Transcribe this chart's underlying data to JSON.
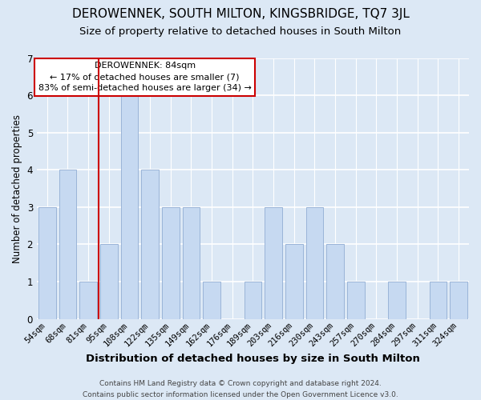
{
  "title": "DEROWENNEK, SOUTH MILTON, KINGSBRIDGE, TQ7 3JL",
  "subtitle": "Size of property relative to detached houses in South Milton",
  "xlabel": "Distribution of detached houses by size in South Milton",
  "ylabel": "Number of detached properties",
  "categories": [
    "54sqm",
    "68sqm",
    "81sqm",
    "95sqm",
    "108sqm",
    "122sqm",
    "135sqm",
    "149sqm",
    "162sqm",
    "176sqm",
    "189sqm",
    "203sqm",
    "216sqm",
    "230sqm",
    "243sqm",
    "257sqm",
    "270sqm",
    "284sqm",
    "297sqm",
    "311sqm",
    "324sqm"
  ],
  "values": [
    3,
    4,
    1,
    2,
    6,
    4,
    3,
    3,
    1,
    0,
    1,
    3,
    2,
    3,
    2,
    1,
    0,
    1,
    0,
    1,
    1
  ],
  "bar_color": "#c6d9f1",
  "bar_edge_color": "#9ab4d8",
  "marker_index": 2,
  "marker_color": "#cc0000",
  "ylim": [
    0,
    7
  ],
  "yticks": [
    0,
    1,
    2,
    3,
    4,
    5,
    6,
    7
  ],
  "annotation_title": "DEROWENNEK: 84sqm",
  "annotation_line1": "← 17% of detached houses are smaller (7)",
  "annotation_line2": "83% of semi-detached houses are larger (34) →",
  "annotation_box_color": "#ffffff",
  "annotation_box_edge": "#cc0000",
  "footer_line1": "Contains HM Land Registry data © Crown copyright and database right 2024.",
  "footer_line2": "Contains public sector information licensed under the Open Government Licence v3.0.",
  "bg_color": "#dce8f5",
  "plot_bg_color": "#dce8f5",
  "grid_color": "#b8cfe8",
  "title_fontsize": 11,
  "subtitle_fontsize": 9.5,
  "xlabel_fontsize": 9.5,
  "ylabel_fontsize": 8.5,
  "tick_fontsize": 7.5,
  "ann_fontsize": 8,
  "footer_fontsize": 6.5
}
